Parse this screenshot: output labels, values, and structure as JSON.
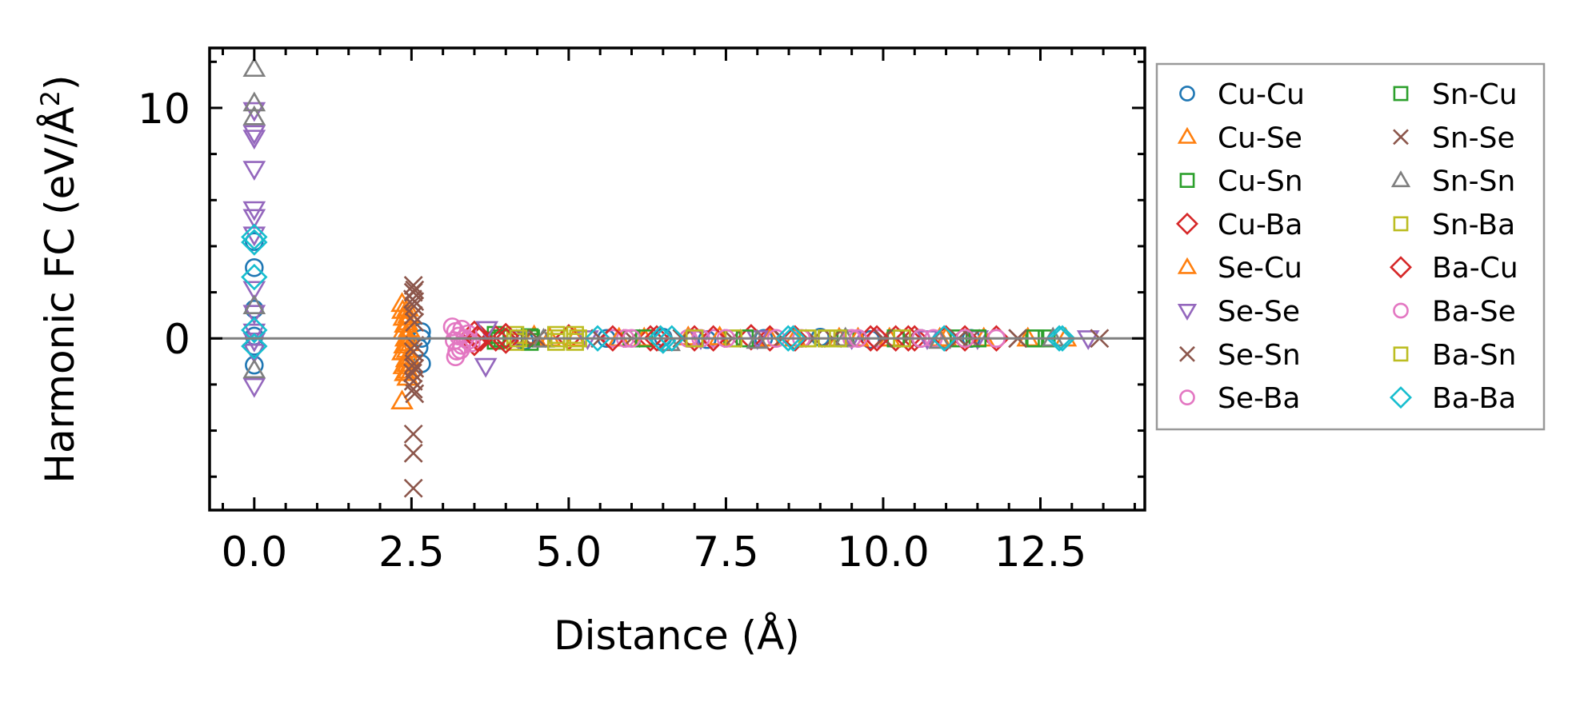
{
  "chart_data": {
    "type": "scatter",
    "title": "",
    "xlabel": "Distance (Å)",
    "ylabel": "Harmonic FC (eV/Å²)",
    "ylabel_main": "Harmonic FC (eV/Å",
    "ylabel_sup": "2",
    "ylabel_end": ")",
    "xlim": [
      -0.71,
      14.16
    ],
    "ylim": [
      -7.45,
      12.6
    ],
    "x_major_step": 2.5,
    "x_minor_step": 0.5,
    "y_major_step": 10,
    "y_minor_step": 2,
    "xticks": [
      {
        "value": 0,
        "label": "0.0"
      },
      {
        "value": 2.5,
        "label": "2.5"
      },
      {
        "value": 5,
        "label": "5.0"
      },
      {
        "value": 7.5,
        "label": "7.5"
      },
      {
        "value": 10,
        "label": "10.0"
      },
      {
        "value": 12.5,
        "label": "12.5"
      }
    ],
    "yticks": [
      {
        "value": 10,
        "label": "10"
      },
      {
        "value": 0,
        "label": "0"
      }
    ],
    "hline": {
      "y": 0,
      "color": "#808080"
    },
    "grid": false,
    "legend": {
      "placement": "outside-right",
      "columns": 2
    },
    "series": [
      {
        "name": "Cu-Cu",
        "marker": "circle",
        "color": "#1f77b4",
        "points": [
          [
            0,
            3.07
          ],
          [
            0,
            4.2
          ],
          [
            0,
            1.27
          ],
          [
            0,
            -0.34
          ],
          [
            0,
            -1.16
          ],
          [
            0,
            0.1
          ],
          [
            2.66,
            0.29
          ],
          [
            2.66,
            0.0
          ],
          [
            2.66,
            -1.1
          ],
          [
            2.62,
            -0.4
          ],
          [
            4.3,
            -0.1
          ],
          [
            5.6,
            0
          ],
          [
            6.5,
            0.05
          ],
          [
            7.2,
            -0.05
          ],
          [
            8.1,
            0
          ],
          [
            9.0,
            0.05
          ],
          [
            9.8,
            -0.05
          ],
          [
            10.6,
            0
          ],
          [
            11.4,
            0
          ]
        ]
      },
      {
        "name": "Cu-Se",
        "marker": "triangle-up",
        "color": "#ff7f0e",
        "points": [
          [
            2.35,
            1.5
          ],
          [
            2.36,
            1.2
          ],
          [
            2.38,
            0.9
          ],
          [
            2.4,
            0.6
          ],
          [
            2.37,
            0.3
          ],
          [
            2.41,
            0
          ],
          [
            2.39,
            -0.3
          ],
          [
            2.36,
            -0.6
          ],
          [
            2.42,
            -0.9
          ],
          [
            2.38,
            -1.2
          ],
          [
            2.4,
            -1.5
          ],
          [
            2.35,
            -2.73
          ],
          [
            4.45,
            0.1
          ],
          [
            4.7,
            0
          ],
          [
            5.8,
            0
          ],
          [
            6.9,
            0.05
          ],
          [
            8.2,
            0
          ],
          [
            9.3,
            0
          ],
          [
            10.1,
            0
          ],
          [
            11.0,
            0
          ],
          [
            12.9,
            0
          ]
        ]
      },
      {
        "name": "Cu-Sn",
        "marker": "square",
        "color": "#2ca02c",
        "points": [
          [
            3.84,
            0.15
          ],
          [
            3.84,
            -0.1
          ],
          [
            3.9,
            0
          ],
          [
            4.38,
            0.05
          ],
          [
            4.38,
            -0.15
          ],
          [
            6.0,
            0
          ],
          [
            7.0,
            0
          ],
          [
            7.6,
            0
          ],
          [
            9.4,
            0
          ],
          [
            10.3,
            0
          ],
          [
            11.2,
            0
          ],
          [
            12.4,
            0
          ]
        ]
      },
      {
        "name": "Cu-Ba",
        "marker": "diamond",
        "color": "#d62728",
        "points": [
          [
            3.5,
            0.2
          ],
          [
            3.5,
            -0.2
          ],
          [
            3.6,
            0
          ],
          [
            3.84,
            0
          ],
          [
            5.0,
            0.05
          ],
          [
            6.3,
            0
          ],
          [
            7.0,
            0
          ],
          [
            7.9,
            0.05
          ],
          [
            8.2,
            0
          ],
          [
            9.8,
            0
          ],
          [
            10.2,
            0
          ],
          [
            10.5,
            0
          ],
          [
            11.0,
            0
          ],
          [
            11.8,
            0
          ]
        ]
      },
      {
        "name": "Se-Cu",
        "marker": "triangle-up",
        "color": "#ff7f0e",
        "points": [
          [
            2.44,
            1.3
          ],
          [
            2.45,
            1.0
          ],
          [
            2.43,
            0.7
          ],
          [
            2.46,
            0.4
          ],
          [
            2.44,
            0.1
          ],
          [
            2.45,
            -0.2
          ],
          [
            2.43,
            -0.5
          ],
          [
            2.46,
            -0.8
          ],
          [
            2.44,
            -1.1
          ],
          [
            2.45,
            -1.4
          ],
          [
            2.44,
            -1.7
          ],
          [
            5.1,
            0
          ],
          [
            6.2,
            0
          ],
          [
            7.4,
            0.05
          ],
          [
            8.6,
            0
          ],
          [
            9.6,
            0
          ],
          [
            10.9,
            0
          ],
          [
            11.6,
            0
          ],
          [
            12.3,
            0
          ]
        ]
      },
      {
        "name": "Se-Se",
        "marker": "triangle-down",
        "color": "#9467bd",
        "points": [
          [
            0,
            9.9
          ],
          [
            0,
            8.9
          ],
          [
            0,
            8.7
          ],
          [
            0,
            7.35
          ],
          [
            0,
            5.6
          ],
          [
            0,
            5.26
          ],
          [
            0,
            4.5
          ],
          [
            0,
            2.14
          ],
          [
            0,
            1.1
          ],
          [
            0,
            0.29
          ],
          [
            0,
            -0.1
          ],
          [
            0,
            -0.58
          ],
          [
            0,
            -2.07
          ],
          [
            3.7,
            0.4
          ],
          [
            3.68,
            -1.2
          ],
          [
            4.2,
            0
          ],
          [
            5.3,
            0
          ],
          [
            7.1,
            0
          ],
          [
            8.0,
            0
          ],
          [
            9.5,
            0
          ],
          [
            10.7,
            0
          ],
          [
            11.5,
            0
          ],
          [
            13.26,
            0
          ]
        ]
      },
      {
        "name": "Se-Sn",
        "marker": "x",
        "color": "#8c564b",
        "points": [
          [
            2.53,
            2.3
          ],
          [
            2.53,
            2.0
          ],
          [
            2.52,
            1.7
          ],
          [
            2.54,
            1.4
          ],
          [
            2.53,
            1.0
          ],
          [
            2.53,
            -0.58
          ],
          [
            2.54,
            -1.1
          ],
          [
            2.52,
            -1.5
          ],
          [
            2.53,
            -1.86
          ],
          [
            2.53,
            -2.2
          ],
          [
            2.53,
            -4.15
          ],
          [
            2.53,
            -4.98
          ],
          [
            2.53,
            -6.5
          ],
          [
            4.3,
            0
          ],
          [
            6.0,
            0
          ],
          [
            7.6,
            0
          ],
          [
            8.9,
            0
          ],
          [
            10.4,
            0
          ],
          [
            11.4,
            0
          ],
          [
            12.14,
            0
          ]
        ]
      },
      {
        "name": "Se-Ba",
        "marker": "circle",
        "color": "#e377c2",
        "points": [
          [
            3.15,
            0.5
          ],
          [
            3.2,
            0.3
          ],
          [
            3.25,
            0.1
          ],
          [
            3.18,
            -0.1
          ],
          [
            3.3,
            -0.3
          ],
          [
            3.22,
            -0.55
          ],
          [
            3.2,
            -0.8
          ],
          [
            3.4,
            0.2
          ],
          [
            3.45,
            -0.2
          ],
          [
            5.7,
            0
          ],
          [
            5.9,
            0
          ],
          [
            6.9,
            0
          ],
          [
            7.3,
            0
          ],
          [
            8.7,
            0
          ],
          [
            9.5,
            0
          ],
          [
            9.9,
            0
          ],
          [
            10.8,
            0
          ],
          [
            11.8,
            0
          ]
        ]
      },
      {
        "name": "Sn-Cu",
        "marker": "square",
        "color": "#2ca02c",
        "points": [
          [
            3.95,
            0
          ],
          [
            4.4,
            0
          ],
          [
            6.2,
            0
          ],
          [
            7.8,
            0
          ],
          [
            9.1,
            0
          ],
          [
            10.2,
            0
          ],
          [
            11.5,
            0
          ],
          [
            12.42,
            0
          ],
          [
            12.6,
            0
          ]
        ]
      },
      {
        "name": "Sn-Se",
        "marker": "x",
        "color": "#8c564b",
        "points": [
          [
            2.55,
            2.1
          ],
          [
            2.55,
            1.6
          ],
          [
            2.55,
            0.7
          ],
          [
            2.55,
            -0.3
          ],
          [
            2.55,
            -1.3
          ],
          [
            2.55,
            -2.4
          ],
          [
            4.5,
            0
          ],
          [
            5.5,
            0
          ],
          [
            6.8,
            0
          ],
          [
            8.4,
            0
          ],
          [
            9.2,
            0
          ],
          [
            10.0,
            0
          ],
          [
            11.2,
            0
          ],
          [
            12.14,
            0
          ],
          [
            13.44,
            0
          ]
        ]
      },
      {
        "name": "Sn-Sn",
        "marker": "triangle-up",
        "color": "#7f7f7f",
        "points": [
          [
            0,
            11.7
          ],
          [
            0,
            10.2
          ],
          [
            0,
            9.6
          ],
          [
            0,
            1.4
          ],
          [
            0,
            -1.38
          ],
          [
            4.6,
            -0.05
          ],
          [
            6.6,
            -0.2
          ],
          [
            8.0,
            -0.1
          ],
          [
            9.4,
            0
          ],
          [
            10.9,
            -0.1
          ],
          [
            12.7,
            0
          ]
        ]
      },
      {
        "name": "Sn-Ba",
        "marker": "square",
        "color": "#bcbd22",
        "points": [
          [
            4.15,
            0.15
          ],
          [
            4.15,
            -0.15
          ],
          [
            4.8,
            0.15
          ],
          [
            4.8,
            -0.15
          ],
          [
            5.1,
            0.15
          ],
          [
            5.1,
            -0.15
          ],
          [
            7.62,
            0
          ],
          [
            8.79,
            0
          ],
          [
            9.1,
            0
          ],
          [
            9.28,
            0
          ]
        ]
      },
      {
        "name": "Ba-Cu",
        "marker": "diamond",
        "color": "#d62728",
        "points": [
          [
            3.55,
            0
          ],
          [
            4.0,
            0.1
          ],
          [
            4.0,
            -0.1
          ],
          [
            5.7,
            0
          ],
          [
            6.4,
            0
          ],
          [
            7.3,
            0
          ],
          [
            8.6,
            0
          ],
          [
            9.9,
            0
          ],
          [
            10.4,
            0
          ],
          [
            11.3,
            0
          ]
        ]
      },
      {
        "name": "Ba-Se",
        "marker": "circle",
        "color": "#e377c2",
        "points": [
          [
            3.3,
            0.4
          ],
          [
            3.35,
            0.0
          ],
          [
            3.28,
            -0.5
          ],
          [
            3.4,
            -0.1
          ],
          [
            6.0,
            0
          ],
          [
            7.1,
            0
          ],
          [
            7.5,
            0
          ],
          [
            8.3,
            0
          ],
          [
            9.6,
            0
          ],
          [
            10.6,
            0
          ],
          [
            11.3,
            0
          ],
          [
            11.8,
            0
          ]
        ]
      },
      {
        "name": "Ba-Sn",
        "marker": "square",
        "color": "#bcbd22",
        "points": [
          [
            4.2,
            0
          ],
          [
            4.85,
            0
          ],
          [
            5.15,
            0
          ],
          [
            7.0,
            0
          ],
          [
            8.8,
            0
          ],
          [
            9.1,
            0
          ],
          [
            10.3,
            0
          ]
        ]
      },
      {
        "name": "Ba-Ba",
        "marker": "diamond",
        "color": "#17becf",
        "points": [
          [
            0,
            4.4
          ],
          [
            0,
            4.17
          ],
          [
            0,
            2.66
          ],
          [
            0,
            0.36
          ],
          [
            0,
            -0.34
          ],
          [
            5.46,
            0
          ],
          [
            6.46,
            0
          ],
          [
            6.5,
            -0.1
          ],
          [
            6.64,
            0
          ],
          [
            8.49,
            0
          ],
          [
            8.57,
            0
          ],
          [
            10.97,
            0
          ],
          [
            12.8,
            0
          ],
          [
            12.85,
            0
          ]
        ]
      }
    ]
  }
}
